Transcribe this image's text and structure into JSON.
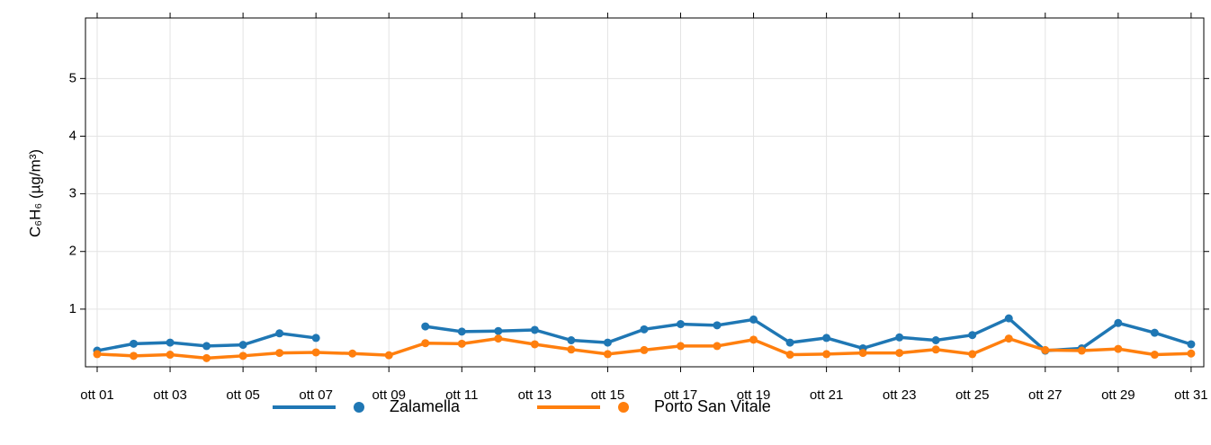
{
  "chart_data": {
    "type": "line",
    "y_label": "C₆H₆ (µg/m³)",
    "categories": [
      "ott 01",
      null,
      "ott 03",
      null,
      "ott 05",
      null,
      "ott 07",
      null,
      "ott 09",
      null,
      "ott 11",
      null,
      "ott 13",
      null,
      "ott 15",
      null,
      "ott 17",
      null,
      "ott 19",
      null,
      "ott 21",
      null,
      "ott 23",
      null,
      "ott 25",
      null,
      "ott 27",
      null,
      "ott 29",
      null,
      "ott 31"
    ],
    "series": [
      {
        "name": "Zalamella",
        "color": "#1f77b4",
        "values": [
          0.28,
          0.4,
          0.42,
          0.36,
          0.38,
          0.58,
          0.5,
          null,
          null,
          0.7,
          0.61,
          0.62,
          0.64,
          0.46,
          0.42,
          0.65,
          0.74,
          0.72,
          0.82,
          0.42,
          0.5,
          0.32,
          0.51,
          0.46,
          0.55,
          0.84,
          0.28,
          0.32,
          0.76,
          0.59,
          0.39
        ]
      },
      {
        "name": "Porto San Vitale",
        "color": "#ff7f0e",
        "values": [
          0.22,
          0.19,
          0.21,
          0.15,
          0.19,
          0.24,
          0.25,
          0.23,
          0.2,
          0.41,
          0.4,
          0.49,
          0.39,
          0.3,
          0.22,
          0.29,
          0.36,
          0.36,
          0.47,
          0.21,
          0.22,
          0.24,
          0.24,
          0.3,
          0.22,
          0.49,
          0.29,
          0.28,
          0.31,
          0.21,
          0.23
        ]
      }
    ],
    "ylim": [
      0,
      6.05
    ],
    "yticks": [
      1,
      2,
      3,
      4,
      5
    ],
    "grid": true,
    "legend": "bottom"
  }
}
